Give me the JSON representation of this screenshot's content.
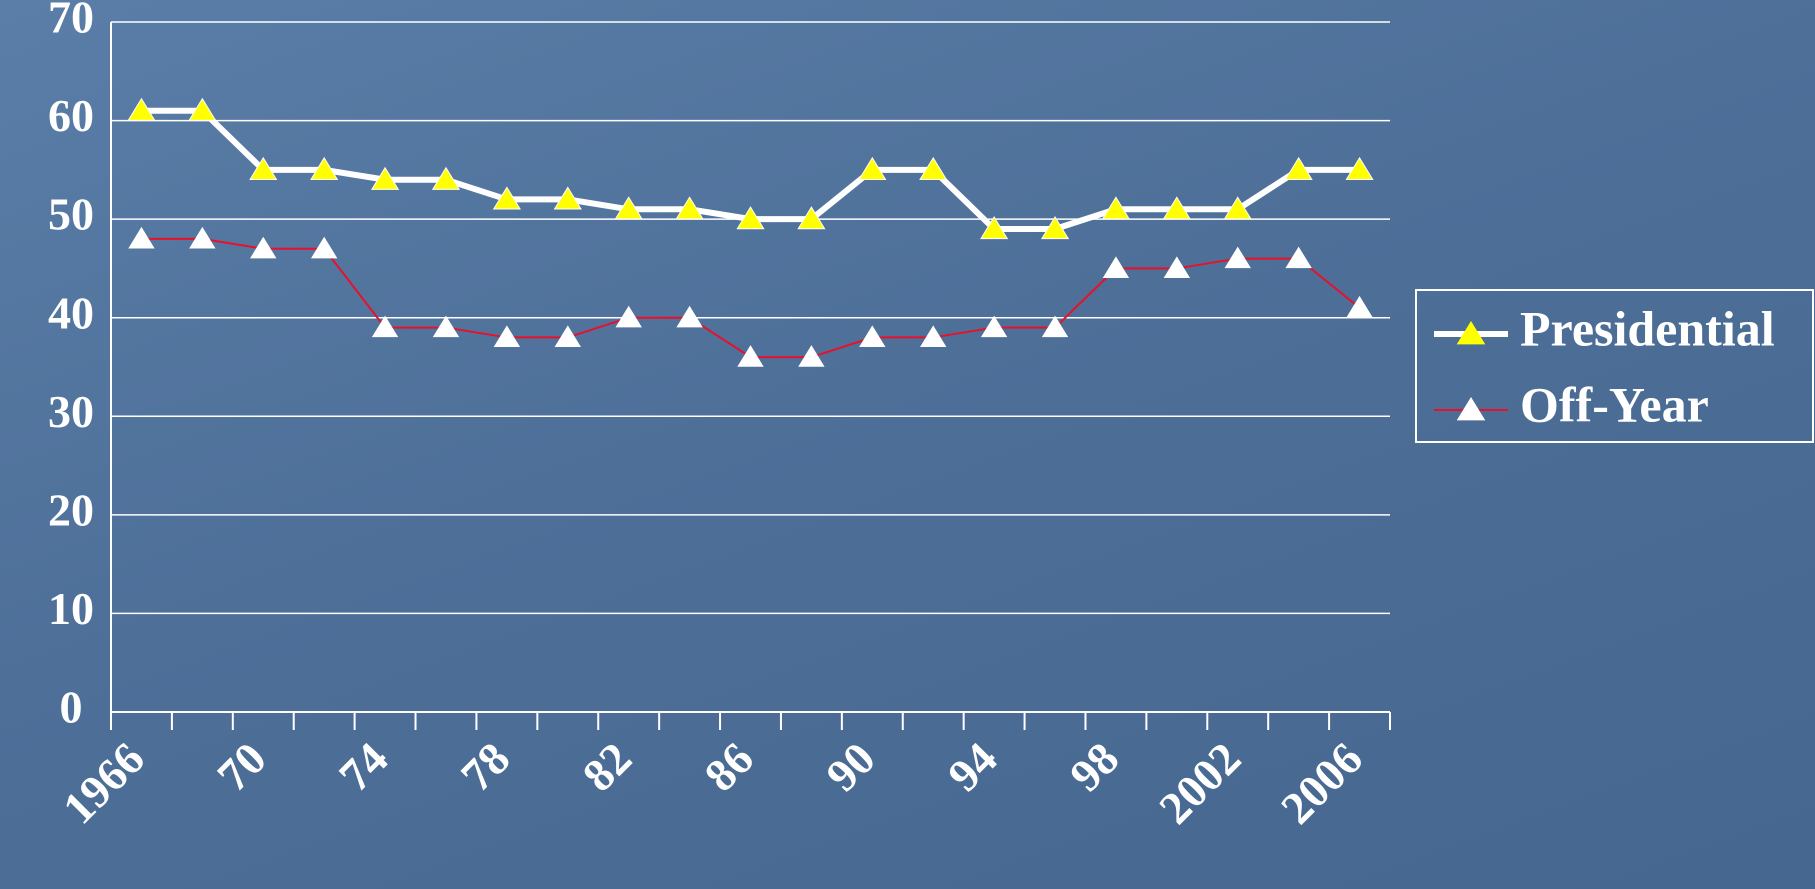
{
  "chart_data": {
    "type": "line",
    "categories": [
      "1966",
      null,
      "70",
      null,
      "74",
      null,
      "78",
      null,
      "82",
      null,
      "86",
      null,
      "90",
      null,
      "94",
      null,
      "98",
      null,
      "2002",
      null,
      "2006"
    ],
    "series": [
      {
        "name": "Presidential",
        "color": "#ffffff",
        "marker_color": "#ffff00",
        "values": [
          61,
          61,
          55,
          55,
          54,
          54,
          52,
          52,
          51,
          51,
          50,
          50,
          55,
          55,
          49,
          49,
          51,
          51,
          51,
          55,
          55
        ]
      },
      {
        "name": "Off-Year",
        "color": "#e8102a",
        "marker_color": "#ffffff",
        "values": [
          48,
          48,
          47,
          47,
          39,
          39,
          38,
          38,
          40,
          40,
          36,
          36,
          38,
          38,
          39,
          39,
          45,
          45,
          46,
          46,
          41
        ]
      }
    ],
    "ylim": [
      0,
      70
    ],
    "yticks": [
      0,
      10,
      20,
      30,
      40,
      50,
      60,
      70
    ],
    "grid": true,
    "legend": "right"
  }
}
